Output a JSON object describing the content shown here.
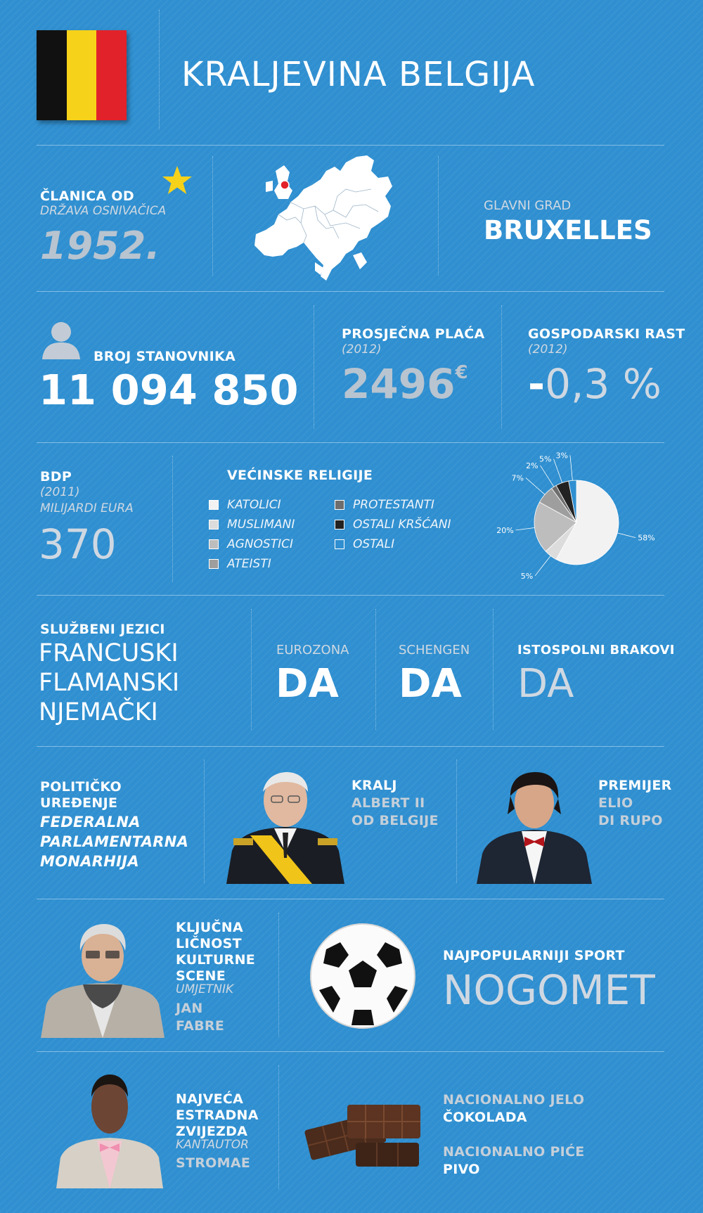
{
  "header": {
    "title": "KRALJEVINA BELGIJA"
  },
  "colors": {
    "flag_black": "#111111",
    "flag_yellow": "#f7d21a",
    "flag_red": "#e2222a",
    "background": "#2f8fd0"
  },
  "membership": {
    "label": "ČLANICA OD",
    "sublabel": "DRŽAVA OSNIVAČICA",
    "year": "1952."
  },
  "capital": {
    "label": "GLAVNI GRAD",
    "value": "BRUXELLES"
  },
  "population": {
    "label": "BROJ STANOVNIKA",
    "value": "11 094 850"
  },
  "salary": {
    "label": "PROSJEČNA PLAĆA",
    "year": "(2012)",
    "value": "2496",
    "unit": "€"
  },
  "growth": {
    "label": "GOSPODARSKI RAST",
    "year": "(2012)",
    "sign": "-",
    "value": "0,3 %"
  },
  "gdp": {
    "label": "BDP",
    "year": "(2011)",
    "unit": "MILIJARDI EURA",
    "value": "370"
  },
  "religion": {
    "title": "VEĆINSKE RELIGIJE",
    "legend_left": [
      "KATOLICI",
      "MUSLIMANI",
      "AGNOSTICI",
      "ATEISTI"
    ],
    "legend_right": [
      "PROTESTANTI",
      "OSTALI KRŠĆANI",
      "OSTALI"
    ]
  },
  "chart_data": {
    "type": "pie",
    "categories": [
      "KATOLICI",
      "MUSLIMANI",
      "AGNOSTICI",
      "ATEISTI",
      "PROTESTANTI",
      "OSTALI KRŠĆANI",
      "OSTALI"
    ],
    "values": [
      58,
      5,
      20,
      7,
      2,
      5,
      3
    ],
    "labels": [
      "58%",
      "5%",
      "20%",
      "7%",
      "2%",
      "5%",
      "3%"
    ],
    "colors": [
      "#f2f2f2",
      "#dcdcdc",
      "#bdbdbd",
      "#9e9e9e",
      "#6e6e6e",
      "#222222",
      "#2f8fd0"
    ]
  },
  "languages": {
    "label": "SLUŽBENI JEZICI",
    "items": [
      "FRANCUSKI",
      "FLAMANSKI",
      "NJEMAČKI"
    ]
  },
  "eurozone": {
    "label": "EUROZONA",
    "value": "DA"
  },
  "schengen": {
    "label": "SCHENGEN",
    "value": "DA"
  },
  "samesex": {
    "label": "ISTOSPOLNI BRAKOVI",
    "value": "DA"
  },
  "politics": {
    "line1": "POLITIČKO",
    "line2": "UREĐENJE",
    "v1": "FEDERALNA",
    "v2": "PARLAMENTARNA",
    "v3": "MONARHIJA"
  },
  "king": {
    "label": "KRALJ",
    "line1": "ALBERT II",
    "line2": "OD BELGIJE"
  },
  "pm": {
    "label": "PREMIJER",
    "line1": "ELIO",
    "line2": "DI RUPO"
  },
  "culture": {
    "l1": "KLJUČNA",
    "l2": "LIČNOST",
    "l3": "KULTURNE",
    "l4": "SCENE",
    "role": "UMJETNIK",
    "n1": "JAN",
    "n2": "FABRE"
  },
  "sport": {
    "label": "NAJPOPULARNIJI SPORT",
    "value": "NOGOMET"
  },
  "star": {
    "l1": "NAJVEĆA",
    "l2": "ESTRADNA",
    "l3": "ZVIJEZDA",
    "role": "KANTAUTOR",
    "name": "STROMAE"
  },
  "food": {
    "label": "NACIONALNO JELO",
    "value": "ČOKOLADA"
  },
  "drink": {
    "label": "NACIONALNO PIĆE",
    "value": "PIVO"
  }
}
